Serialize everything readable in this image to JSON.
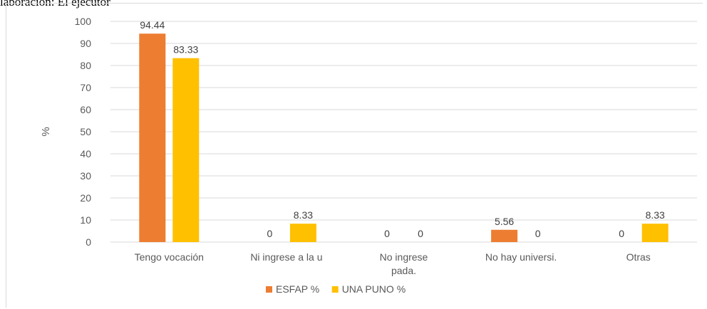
{
  "caption": "laboración: El ejecutor",
  "chart_data": {
    "type": "bar",
    "categories": [
      [
        "Tengo vocación"
      ],
      [
        "Ni ingrese a la u"
      ],
      [
        "No ingrese",
        "pada."
      ],
      [
        "No hay universi."
      ],
      [
        "Otras"
      ]
    ],
    "series": [
      {
        "name": "ESFAP %",
        "values": [
          94.44,
          0,
          0,
          5.56,
          0
        ],
        "labels": [
          "94.44",
          "0",
          "0",
          "5.56",
          "0"
        ],
        "color": "#ed7d31"
      },
      {
        "name": "UNA PUNO %",
        "values": [
          83.33,
          8.33,
          0,
          0,
          8.33
        ],
        "labels": [
          "83.33",
          "8.33",
          "0",
          "0",
          "8.33"
        ],
        "color": "#ffc000"
      }
    ],
    "ylabel": "%",
    "xlabel": "",
    "ylim": [
      0,
      100
    ],
    "yticks": [
      0,
      10,
      20,
      30,
      40,
      50,
      60,
      70,
      80,
      90,
      100
    ],
    "grid": true,
    "legend": "bottom",
    "gridColor": "#d9d9d9"
  }
}
